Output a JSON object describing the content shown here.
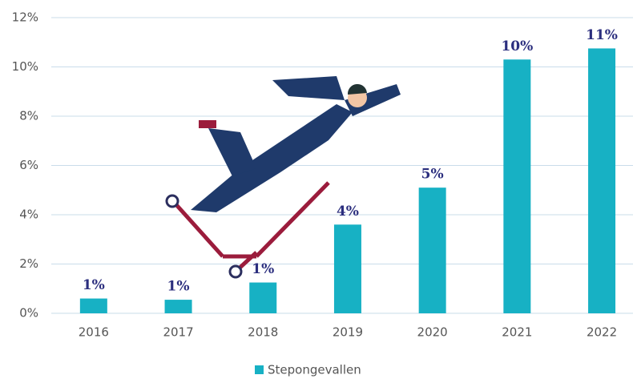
{
  "chart_data": {
    "type": "bar",
    "categories": [
      "2016",
      "2017",
      "2018",
      "2019",
      "2020",
      "2021",
      "2022"
    ],
    "series": [
      {
        "name": "Stepongevallen",
        "color": "#17b1c4",
        "values": [
          0.6,
          0.55,
          1.25,
          3.6,
          5.1,
          10.3,
          10.75
        ],
        "value_labels": [
          "1%",
          "1%",
          "1%",
          "4%",
          "5%",
          "10%",
          "11%"
        ]
      }
    ],
    "ylim": [
      0,
      12
    ],
    "yticks": [
      {
        "value": 0,
        "label": "0%"
      },
      {
        "value": 2,
        "label": "2%"
      },
      {
        "value": 4,
        "label": "4%"
      },
      {
        "value": 6,
        "label": "6%"
      },
      {
        "value": 8,
        "label": "8%"
      },
      {
        "value": 10,
        "label": "10%"
      },
      {
        "value": 12,
        "label": "12%"
      }
    ],
    "grid": true,
    "legend": "bottom"
  }
}
